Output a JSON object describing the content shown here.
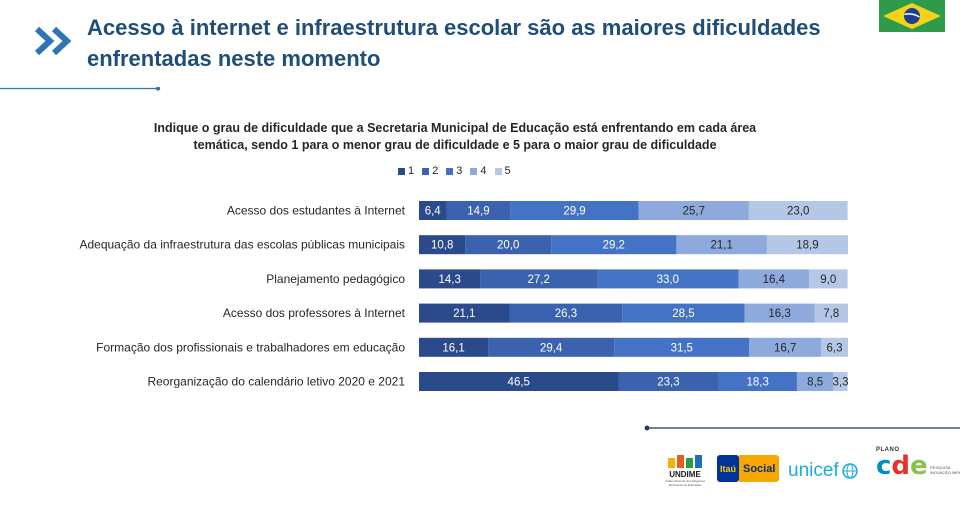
{
  "header": {
    "title": "Acesso à internet e infraestrutura escolar são as maiores dificuldades enfrentadas neste momento"
  },
  "colors": {
    "title": "#1f4e79",
    "series": [
      "#2b4a8b",
      "#3a62ae",
      "#4472c4",
      "#8ea9db",
      "#b4c7e7"
    ]
  },
  "chart_data": {
    "type": "bar",
    "orientation": "horizontal",
    "stacked": true,
    "title": "Indique o grau de dificuldade que a Secretaria Municipal de Educação está enfrentando em cada área temática, sendo 1 para o menor grau de dificuldade  e 5 para  o maior grau de  dificuldade",
    "legend_position": "top",
    "categories": [
      "Acesso dos estudantes à Internet",
      "Adequação da infraestrutura das escolas públicas municipais",
      "Planejamento pedagógico",
      "Acesso dos professores à Internet",
      "Formação dos profissionais e trabalhadores em educação",
      "Reorganização do calendário letivo 2020 e 2021"
    ],
    "series": [
      {
        "name": "1",
        "values": [
          6.4,
          10.8,
          14.3,
          21.1,
          16.1,
          46.5
        ],
        "labels": [
          "6,4",
          "10,8",
          "14,3",
          "21,1",
          "16,1",
          "46,5"
        ]
      },
      {
        "name": "2",
        "values": [
          14.9,
          20.0,
          27.2,
          26.3,
          29.4,
          23.3
        ],
        "labels": [
          "14,9",
          "20,0",
          "27,2",
          "26,3",
          "29,4",
          "23,3"
        ]
      },
      {
        "name": "3",
        "values": [
          29.9,
          29.2,
          33.0,
          28.5,
          31.5,
          18.3
        ],
        "labels": [
          "29,9",
          "29,2",
          "33,0",
          "28,5",
          "31,5",
          "18,3"
        ]
      },
      {
        "name": "4",
        "values": [
          25.7,
          21.1,
          16.4,
          16.3,
          16.7,
          8.5
        ],
        "labels": [
          "25,7",
          "21,1",
          "16,4",
          "16,3",
          "16,7",
          "8,5"
        ]
      },
      {
        "name": "5",
        "values": [
          23.0,
          18.9,
          9.0,
          7.8,
          6.3,
          3.3
        ],
        "labels": [
          "23,0",
          "18,9",
          "9,0",
          "7,8",
          "6,3",
          "3,3"
        ]
      }
    ],
    "xlim": [
      0,
      100
    ],
    "grid": false
  },
  "logos": {
    "undime": "UNDIME",
    "undime_sub": "União Nacional dos Dirigentes Municipais de Educação",
    "itau": "Itaú",
    "itau_social": "Social",
    "unicef": "unicef",
    "unicef_icon": "globe-icon",
    "cde_plano": "PLANO",
    "cde_word": "cde",
    "cde_tagline": "PESQUISA INOVAÇÃO IMPACTO"
  }
}
